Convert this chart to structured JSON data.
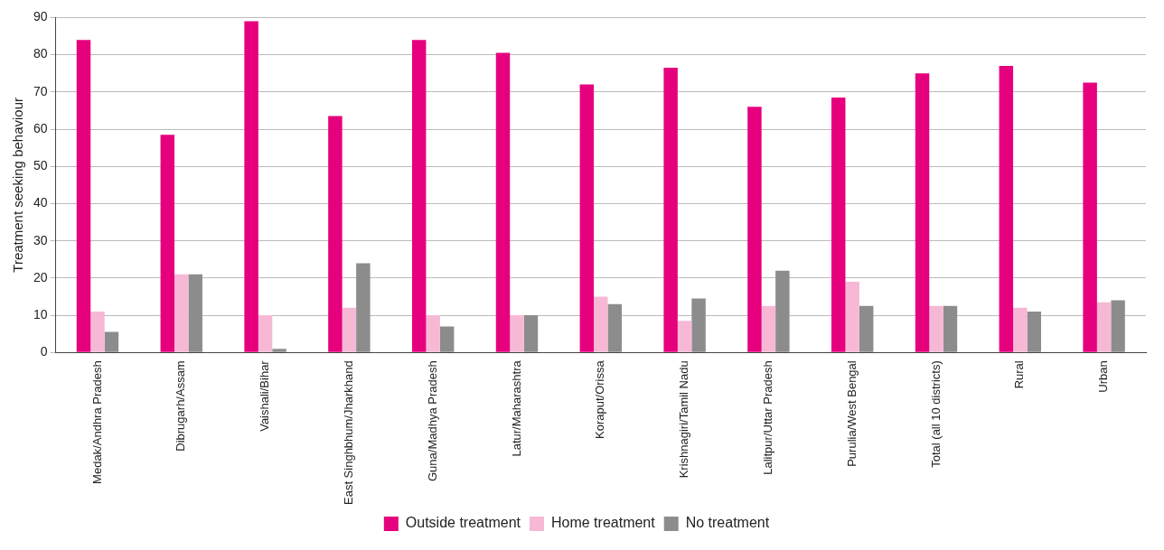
{
  "chart_data": {
    "type": "bar",
    "ylabel": "Treatment seeking behaviour",
    "categories": [
      "Medak/Andhra Pradesh",
      "Dibrugarh/Assam",
      "Vaishali/Bihar",
      "East Singhbhum/Jharkhand",
      "Guna/Madhya Pradesh",
      "Latur/Maharashtra",
      "Koraput/Orissa",
      "Krishnagiri/Tamil Nadu",
      "Lalitpur/Uttar Pradesh",
      "Purulia/West Bengal",
      "Total (all 10 districts)",
      "Rural",
      "Urban"
    ],
    "series": [
      {
        "name": "Outside treatment",
        "color": "#e6007e",
        "values": [
          84,
          58.5,
          89,
          63.5,
          84,
          80.5,
          72,
          76.5,
          66,
          68.5,
          75,
          77,
          72.5
        ]
      },
      {
        "name": "Home treatment",
        "color": "#f7b8d6",
        "values": [
          11,
          21,
          10,
          12,
          10,
          10,
          15,
          8.5,
          12.5,
          19,
          12.5,
          12,
          13.5
        ]
      },
      {
        "name": "No treatment",
        "color": "#8c8c8c",
        "values": [
          5.5,
          21,
          1,
          24,
          7,
          10,
          13,
          14.5,
          22,
          12.5,
          12.5,
          11,
          14
        ]
      }
    ],
    "ylim": [
      0,
      90
    ],
    "yticks": [
      0,
      10,
      20,
      30,
      40,
      50,
      60,
      70,
      80,
      90
    ],
    "grid": "y",
    "legend": "bottom"
  }
}
